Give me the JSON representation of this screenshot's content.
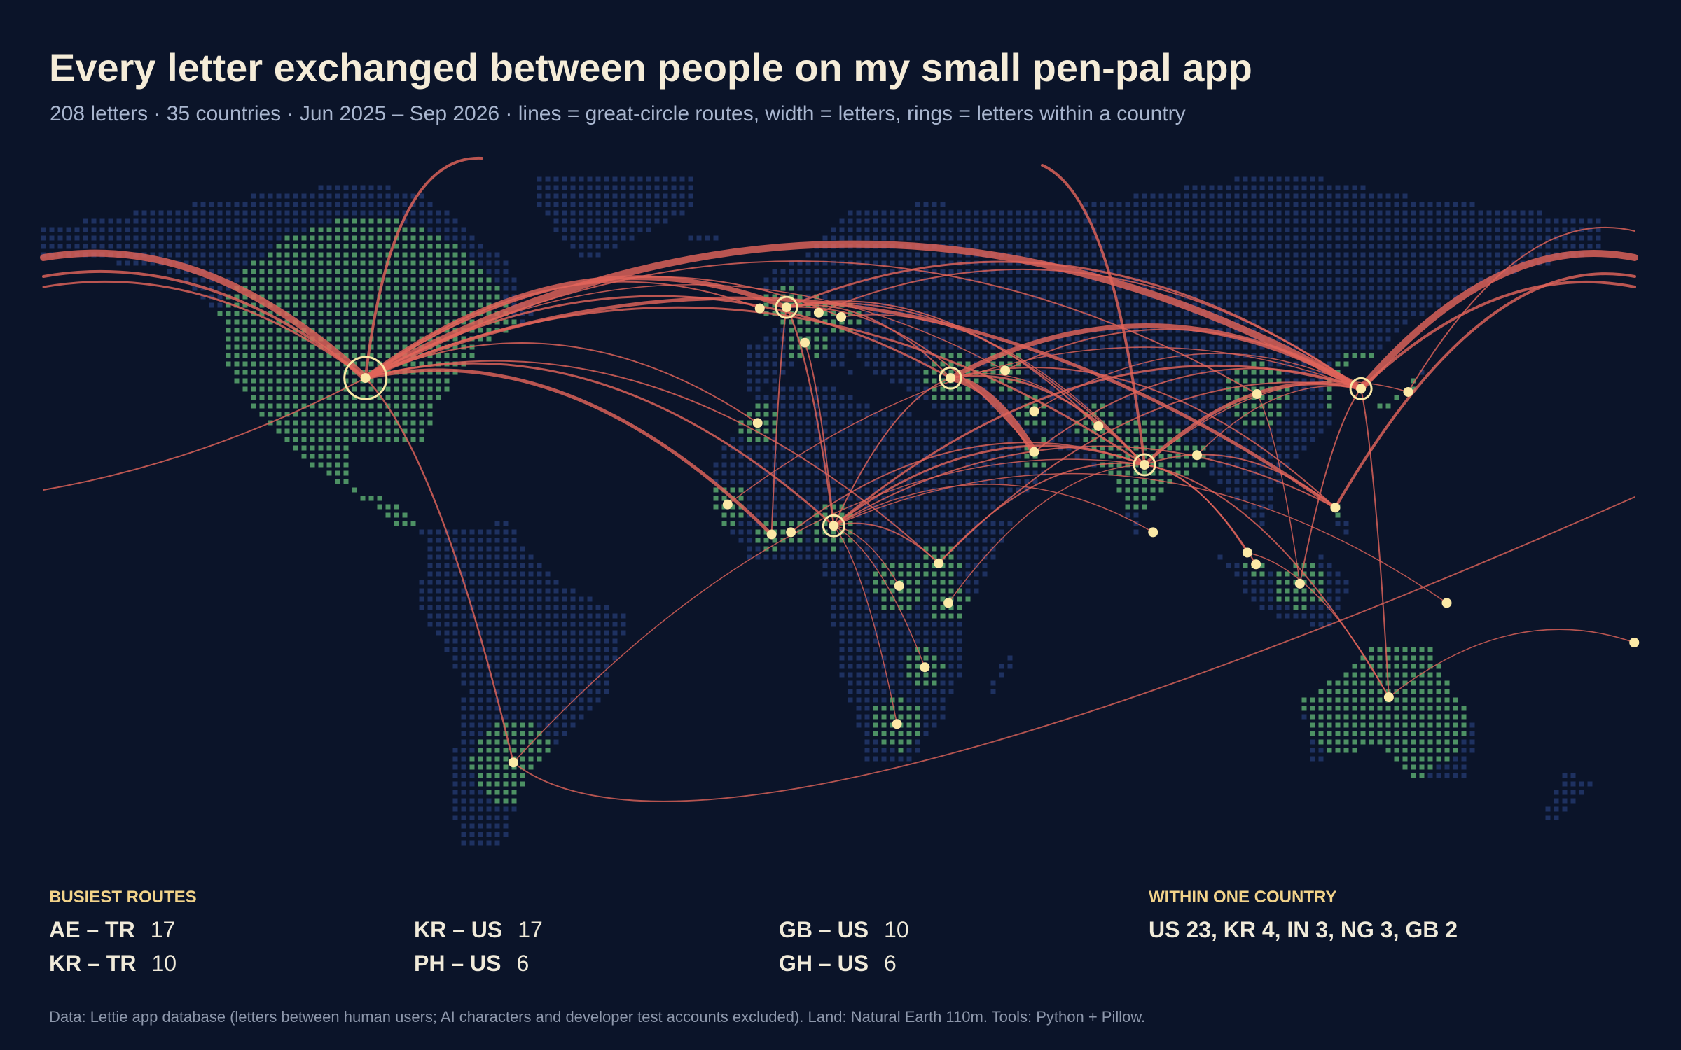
{
  "header": {
    "title": "Every letter exchanged between people on my small pen-pal app",
    "subtitle": "208 letters · 35 countries · Jun 2025 – Sep 2026 · lines = great-circle routes, width = letters, rings = letters within a country"
  },
  "busiest_routes": {
    "heading": "BUSIEST ROUTES",
    "routes": [
      {
        "pair": "AE – TR",
        "letters": 17
      },
      {
        "pair": "KR – US",
        "letters": 17
      },
      {
        "pair": "GB – US",
        "letters": 10
      },
      {
        "pair": "KR – TR",
        "letters": 10
      },
      {
        "pair": "PH – US",
        "letters": 6
      },
      {
        "pair": "GH – US",
        "letters": 6
      }
    ]
  },
  "within_one_country": {
    "heading": "WITHIN ONE COUNTRY",
    "text": "US 23, KR 4, IN 3, NG 3, GB 2"
  },
  "footer": "Data: Lettie app database (letters between human users; AI characters and developer test accounts excluded). Land: Natural Earth 110m. Tools: Python + Pillow."
}
